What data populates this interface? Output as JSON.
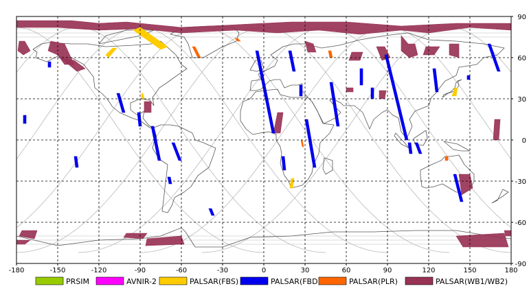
{
  "map": {
    "lon_ticks": [
      "-180",
      "-150",
      "-120",
      "-90",
      "-60",
      "-30",
      "0",
      "30",
      "60",
      "90",
      "120",
      "150",
      "180"
    ],
    "lat_ticks": [
      "90",
      "60",
      "30",
      "0",
      "-30",
      "-60",
      "-90"
    ],
    "lon_range": [
      -180,
      180
    ],
    "lat_range": [
      -90,
      90
    ],
    "grid": true,
    "frame_color": "#000000",
    "grid_color": "#000000",
    "coastline_color": "#555555",
    "orbit_color": "#b8b8b8"
  },
  "legend": [
    {
      "name": "PRSIM",
      "color": "#99cc00"
    },
    {
      "name": "AVNIR-2",
      "color": "#ff00ff"
    },
    {
      "name": "PALSAR(FBS)",
      "color": "#ffcc00"
    },
    {
      "name": "PALSAR(FBD)",
      "color": "#0000ee"
    },
    {
      "name": "PALSAR(PLR)",
      "color": "#ff6600"
    },
    {
      "name": "PALSAR(WB1/WB2)",
      "color": "#993355"
    }
  ],
  "observations": {
    "wb": [
      [
        [
          -180,
          87
        ],
        [
          -140,
          87
        ],
        [
          -120,
          85
        ],
        [
          -100,
          86
        ],
        [
          -80,
          84
        ],
        [
          -60,
          82
        ],
        [
          -20,
          84
        ],
        [
          20,
          86
        ],
        [
          60,
          86
        ],
        [
          100,
          83
        ],
        [
          140,
          85
        ],
        [
          180,
          85
        ],
        [
          180,
          80
        ],
        [
          150,
          82
        ],
        [
          120,
          78
        ],
        [
          100,
          80
        ],
        [
          70,
          77
        ],
        [
          40,
          80
        ],
        [
          10,
          78
        ],
        [
          -20,
          80
        ],
        [
          -60,
          78
        ],
        [
          -90,
          81
        ],
        [
          -120,
          80
        ],
        [
          -150,
          82
        ],
        [
          -180,
          82
        ]
      ],
      [
        [
          -178,
          72
        ],
        [
          -174,
          72
        ],
        [
          -170,
          65
        ],
        [
          -175,
          62
        ],
        [
          -179,
          65
        ]
      ],
      [
        [
          -155,
          72
        ],
        [
          -145,
          70
        ],
        [
          -138,
          55
        ],
        [
          -145,
          55
        ],
        [
          -150,
          62
        ],
        [
          -157,
          65
        ]
      ],
      [
        [
          -148,
          60
        ],
        [
          -138,
          58
        ],
        [
          -130,
          52
        ],
        [
          -136,
          50
        ]
      ],
      [
        [
          -87,
          28
        ],
        [
          -82,
          28
        ],
        [
          -82,
          20
        ],
        [
          -87,
          20
        ]
      ],
      [
        [
          10,
          20
        ],
        [
          14,
          20
        ],
        [
          12,
          5
        ],
        [
          7,
          5
        ]
      ],
      [
        [
          30,
          72
        ],
        [
          36,
          70
        ],
        [
          38,
          64
        ],
        [
          32,
          64
        ]
      ],
      [
        [
          64,
          64
        ],
        [
          72,
          64
        ],
        [
          70,
          58
        ],
        [
          62,
          58
        ]
      ],
      [
        [
          82,
          68
        ],
        [
          88,
          68
        ],
        [
          92,
          60
        ],
        [
          86,
          58
        ]
      ],
      [
        [
          100,
          76
        ],
        [
          105,
          70
        ],
        [
          110,
          70
        ],
        [
          112,
          62
        ],
        [
          106,
          60
        ],
        [
          100,
          65
        ]
      ],
      [
        [
          118,
          68
        ],
        [
          128,
          68
        ],
        [
          124,
          62
        ],
        [
          116,
          62
        ]
      ],
      [
        [
          135,
          70
        ],
        [
          142,
          70
        ],
        [
          142,
          60
        ],
        [
          135,
          62
        ]
      ],
      [
        [
          60,
          38
        ],
        [
          65,
          38
        ],
        [
          65,
          35
        ],
        [
          60,
          35
        ]
      ],
      [
        [
          84,
          36
        ],
        [
          89,
          36
        ],
        [
          88,
          30
        ],
        [
          84,
          30
        ]
      ],
      [
        [
          168,
          15
        ],
        [
          172,
          15
        ],
        [
          171,
          0
        ],
        [
          167,
          0
        ]
      ],
      [
        [
          142,
          -25
        ],
        [
          150,
          -25
        ],
        [
          152,
          -35
        ],
        [
          144,
          -40
        ]
      ],
      [
        [
          -176,
          -66
        ],
        [
          -165,
          -66
        ],
        [
          -167,
          -72
        ],
        [
          -178,
          -70
        ]
      ],
      [
        [
          -180,
          -73
        ],
        [
          -170,
          -73
        ],
        [
          -174,
          -76
        ],
        [
          -180,
          -76
        ]
      ],
      [
        [
          -100,
          -68
        ],
        [
          -85,
          -68
        ],
        [
          -88,
          -72
        ],
        [
          -102,
          -71
        ]
      ],
      [
        [
          -85,
          -72
        ],
        [
          -60,
          -70
        ],
        [
          -58,
          -76
        ],
        [
          -86,
          -77
        ]
      ],
      [
        [
          140,
          -70
        ],
        [
          175,
          -68
        ],
        [
          178,
          -78
        ],
        [
          145,
          -78
        ]
      ],
      [
        [
          175,
          -66
        ],
        [
          180,
          -66
        ],
        [
          180,
          -70
        ],
        [
          176,
          -70
        ]
      ]
    ],
    "fbs": [
      [
        [
          -95,
          80
        ],
        [
          -90,
          82
        ],
        [
          -70,
          68
        ],
        [
          -75,
          66
        ]
      ],
      [
        [
          -110,
          67
        ],
        [
          -107,
          67
        ],
        [
          -113,
          60
        ],
        [
          -115,
          62
        ]
      ],
      [
        [
          -89,
          34
        ],
        [
          -88,
          34
        ],
        [
          -87,
          30
        ],
        [
          -89,
          30
        ]
      ],
      [
        [
          139,
          38
        ],
        [
          141,
          38
        ],
        [
          140,
          32
        ],
        [
          137,
          32
        ]
      ],
      [
        [
          20,
          -28
        ],
        [
          22,
          -28
        ],
        [
          21,
          -35
        ],
        [
          19,
          -35
        ]
      ]
    ],
    "fbd": [
      [
        [
          -157,
          57
        ],
        [
          -155,
          57
        ],
        [
          -155,
          53
        ],
        [
          -157,
          53
        ]
      ],
      [
        [
          -107,
          34
        ],
        [
          -105,
          34
        ],
        [
          -101,
          20
        ],
        [
          -103,
          20
        ]
      ],
      [
        [
          -92,
          20
        ],
        [
          -90,
          20
        ],
        [
          -89,
          10
        ],
        [
          -91,
          10
        ]
      ],
      [
        [
          -82,
          10
        ],
        [
          -80,
          10
        ],
        [
          -75,
          -15
        ],
        [
          -77,
          -15
        ]
      ],
      [
        [
          -67,
          -2
        ],
        [
          -65,
          -2
        ],
        [
          -60,
          -15
        ],
        [
          -62,
          -15
        ]
      ],
      [
        [
          -70,
          -27
        ],
        [
          -68,
          -27
        ],
        [
          -67,
          -32
        ],
        [
          -69,
          -32
        ]
      ],
      [
        [
          -138,
          -12
        ],
        [
          -136,
          -12
        ],
        [
          -135,
          -20
        ],
        [
          -137,
          -20
        ]
      ],
      [
        [
          -40,
          -50
        ],
        [
          -38,
          -50
        ],
        [
          -36,
          -55
        ],
        [
          -38,
          -55
        ]
      ],
      [
        [
          -175,
          18
        ],
        [
          -173,
          18
        ],
        [
          -173,
          12
        ],
        [
          -175,
          12
        ]
      ],
      [
        [
          -6,
          65
        ],
        [
          -4,
          65
        ],
        [
          8,
          5
        ],
        [
          6,
          5
        ]
      ],
      [
        [
          18,
          65
        ],
        [
          20,
          65
        ],
        [
          23,
          50
        ],
        [
          21,
          50
        ]
      ],
      [
        [
          26,
          40
        ],
        [
          28,
          40
        ],
        [
          28,
          32
        ],
        [
          26,
          32
        ]
      ],
      [
        [
          48,
          42
        ],
        [
          50,
          42
        ],
        [
          55,
          10
        ],
        [
          53,
          10
        ]
      ],
      [
        [
          30,
          15
        ],
        [
          32,
          15
        ],
        [
          38,
          -20
        ],
        [
          36,
          -20
        ]
      ],
      [
        [
          13,
          -12
        ],
        [
          15,
          -12
        ],
        [
          16,
          -22
        ],
        [
          14,
          -22
        ]
      ],
      [
        [
          88,
          62
        ],
        [
          90,
          62
        ],
        [
          105,
          0
        ],
        [
          103,
          0
        ]
      ],
      [
        [
          78,
          38
        ],
        [
          80,
          38
        ],
        [
          80,
          30
        ],
        [
          78,
          30
        ]
      ],
      [
        [
          70,
          52
        ],
        [
          72,
          52
        ],
        [
          72,
          40
        ],
        [
          70,
          40
        ]
      ],
      [
        [
          110,
          -2
        ],
        [
          112,
          -2
        ],
        [
          115,
          -10
        ],
        [
          113,
          -10
        ]
      ],
      [
        [
          123,
          52
        ],
        [
          125,
          52
        ],
        [
          127,
          35
        ],
        [
          125,
          35
        ]
      ],
      [
        [
          148,
          47
        ],
        [
          150,
          47
        ],
        [
          150,
          44
        ],
        [
          148,
          44
        ]
      ],
      [
        [
          163,
          70
        ],
        [
          165,
          70
        ],
        [
          172,
          50
        ],
        [
          170,
          50
        ]
      ],
      [
        [
          138,
          -25
        ],
        [
          140,
          -25
        ],
        [
          145,
          -45
        ],
        [
          143,
          -45
        ]
      ],
      [
        [
          105,
          -2
        ],
        [
          107,
          -2
        ],
        [
          108,
          -10
        ],
        [
          106,
          -10
        ]
      ]
    ],
    "plr": [
      [
        [
          -52,
          68
        ],
        [
          -50,
          68
        ],
        [
          -46,
          60
        ],
        [
          -48,
          60
        ]
      ],
      [
        [
          47,
          65
        ],
        [
          49,
          65
        ],
        [
          50,
          60
        ],
        [
          48,
          60
        ]
      ],
      [
        [
          -21,
          74
        ],
        [
          -19,
          74
        ],
        [
          -17,
          72
        ],
        [
          -19,
          72
        ]
      ],
      [
        [
          27,
          0
        ],
        [
          28,
          0
        ],
        [
          29,
          -5
        ],
        [
          28,
          -5
        ]
      ],
      [
        [
          132,
          -12
        ],
        [
          134,
          -12
        ],
        [
          134,
          -15
        ],
        [
          132,
          -15
        ]
      ]
    ]
  }
}
